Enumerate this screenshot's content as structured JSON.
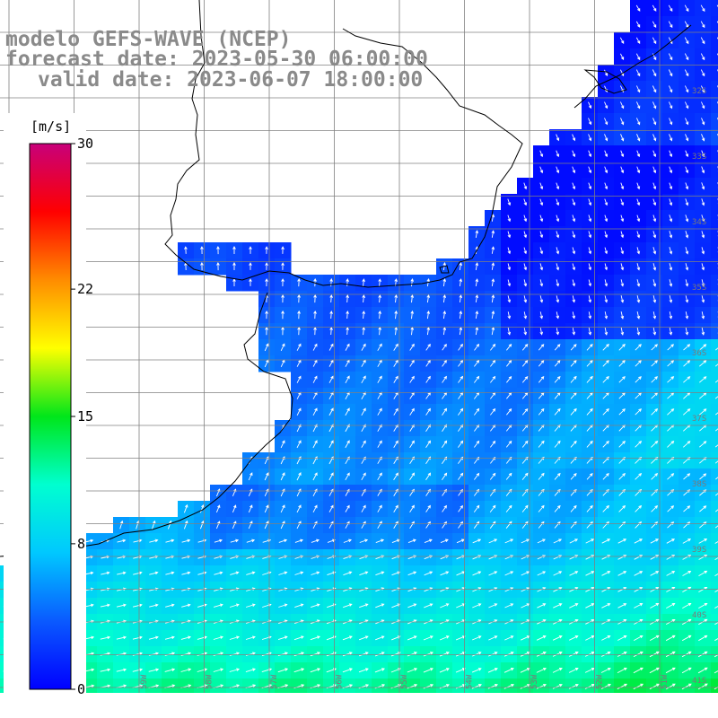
{
  "title": {
    "model": "modelo GEFS-WAVE (NCEP)",
    "forecast": "forecast date: 2023-05-30 06:00:00",
    "valid": "valid date: 2023-06-07 18:00:00"
  },
  "colorbar": {
    "unit": "[m/s]",
    "range": [
      0,
      30
    ],
    "ticks": [
      {
        "label": "30",
        "value": 30
      },
      {
        "label": "22",
        "value": 22
      },
      {
        "label": "15",
        "value": 15
      },
      {
        "label": "8",
        "value": 8
      },
      {
        "label": "0",
        "value": 0
      }
    ],
    "colors": [
      "#0000ff",
      "#0a5aff",
      "#00c8ff",
      "#00ffd0",
      "#00e61a",
      "#ffff00",
      "#ff8c00",
      "#ff0000",
      "#c8007a"
    ]
  },
  "map": {
    "lat_labels": [
      "32S",
      "33S",
      "34S",
      "35S",
      "36S",
      "37S",
      "38S",
      "39S",
      "40S",
      "41S"
    ],
    "lon_labels": [
      "61W",
      "60W",
      "59W",
      "58W",
      "57W",
      "56W",
      "55W",
      "54W",
      "53W",
      "52W",
      "51W"
    ],
    "land_color": "#ffffff",
    "grid_color": "#808080",
    "arrow_color": "#ffffff"
  }
}
